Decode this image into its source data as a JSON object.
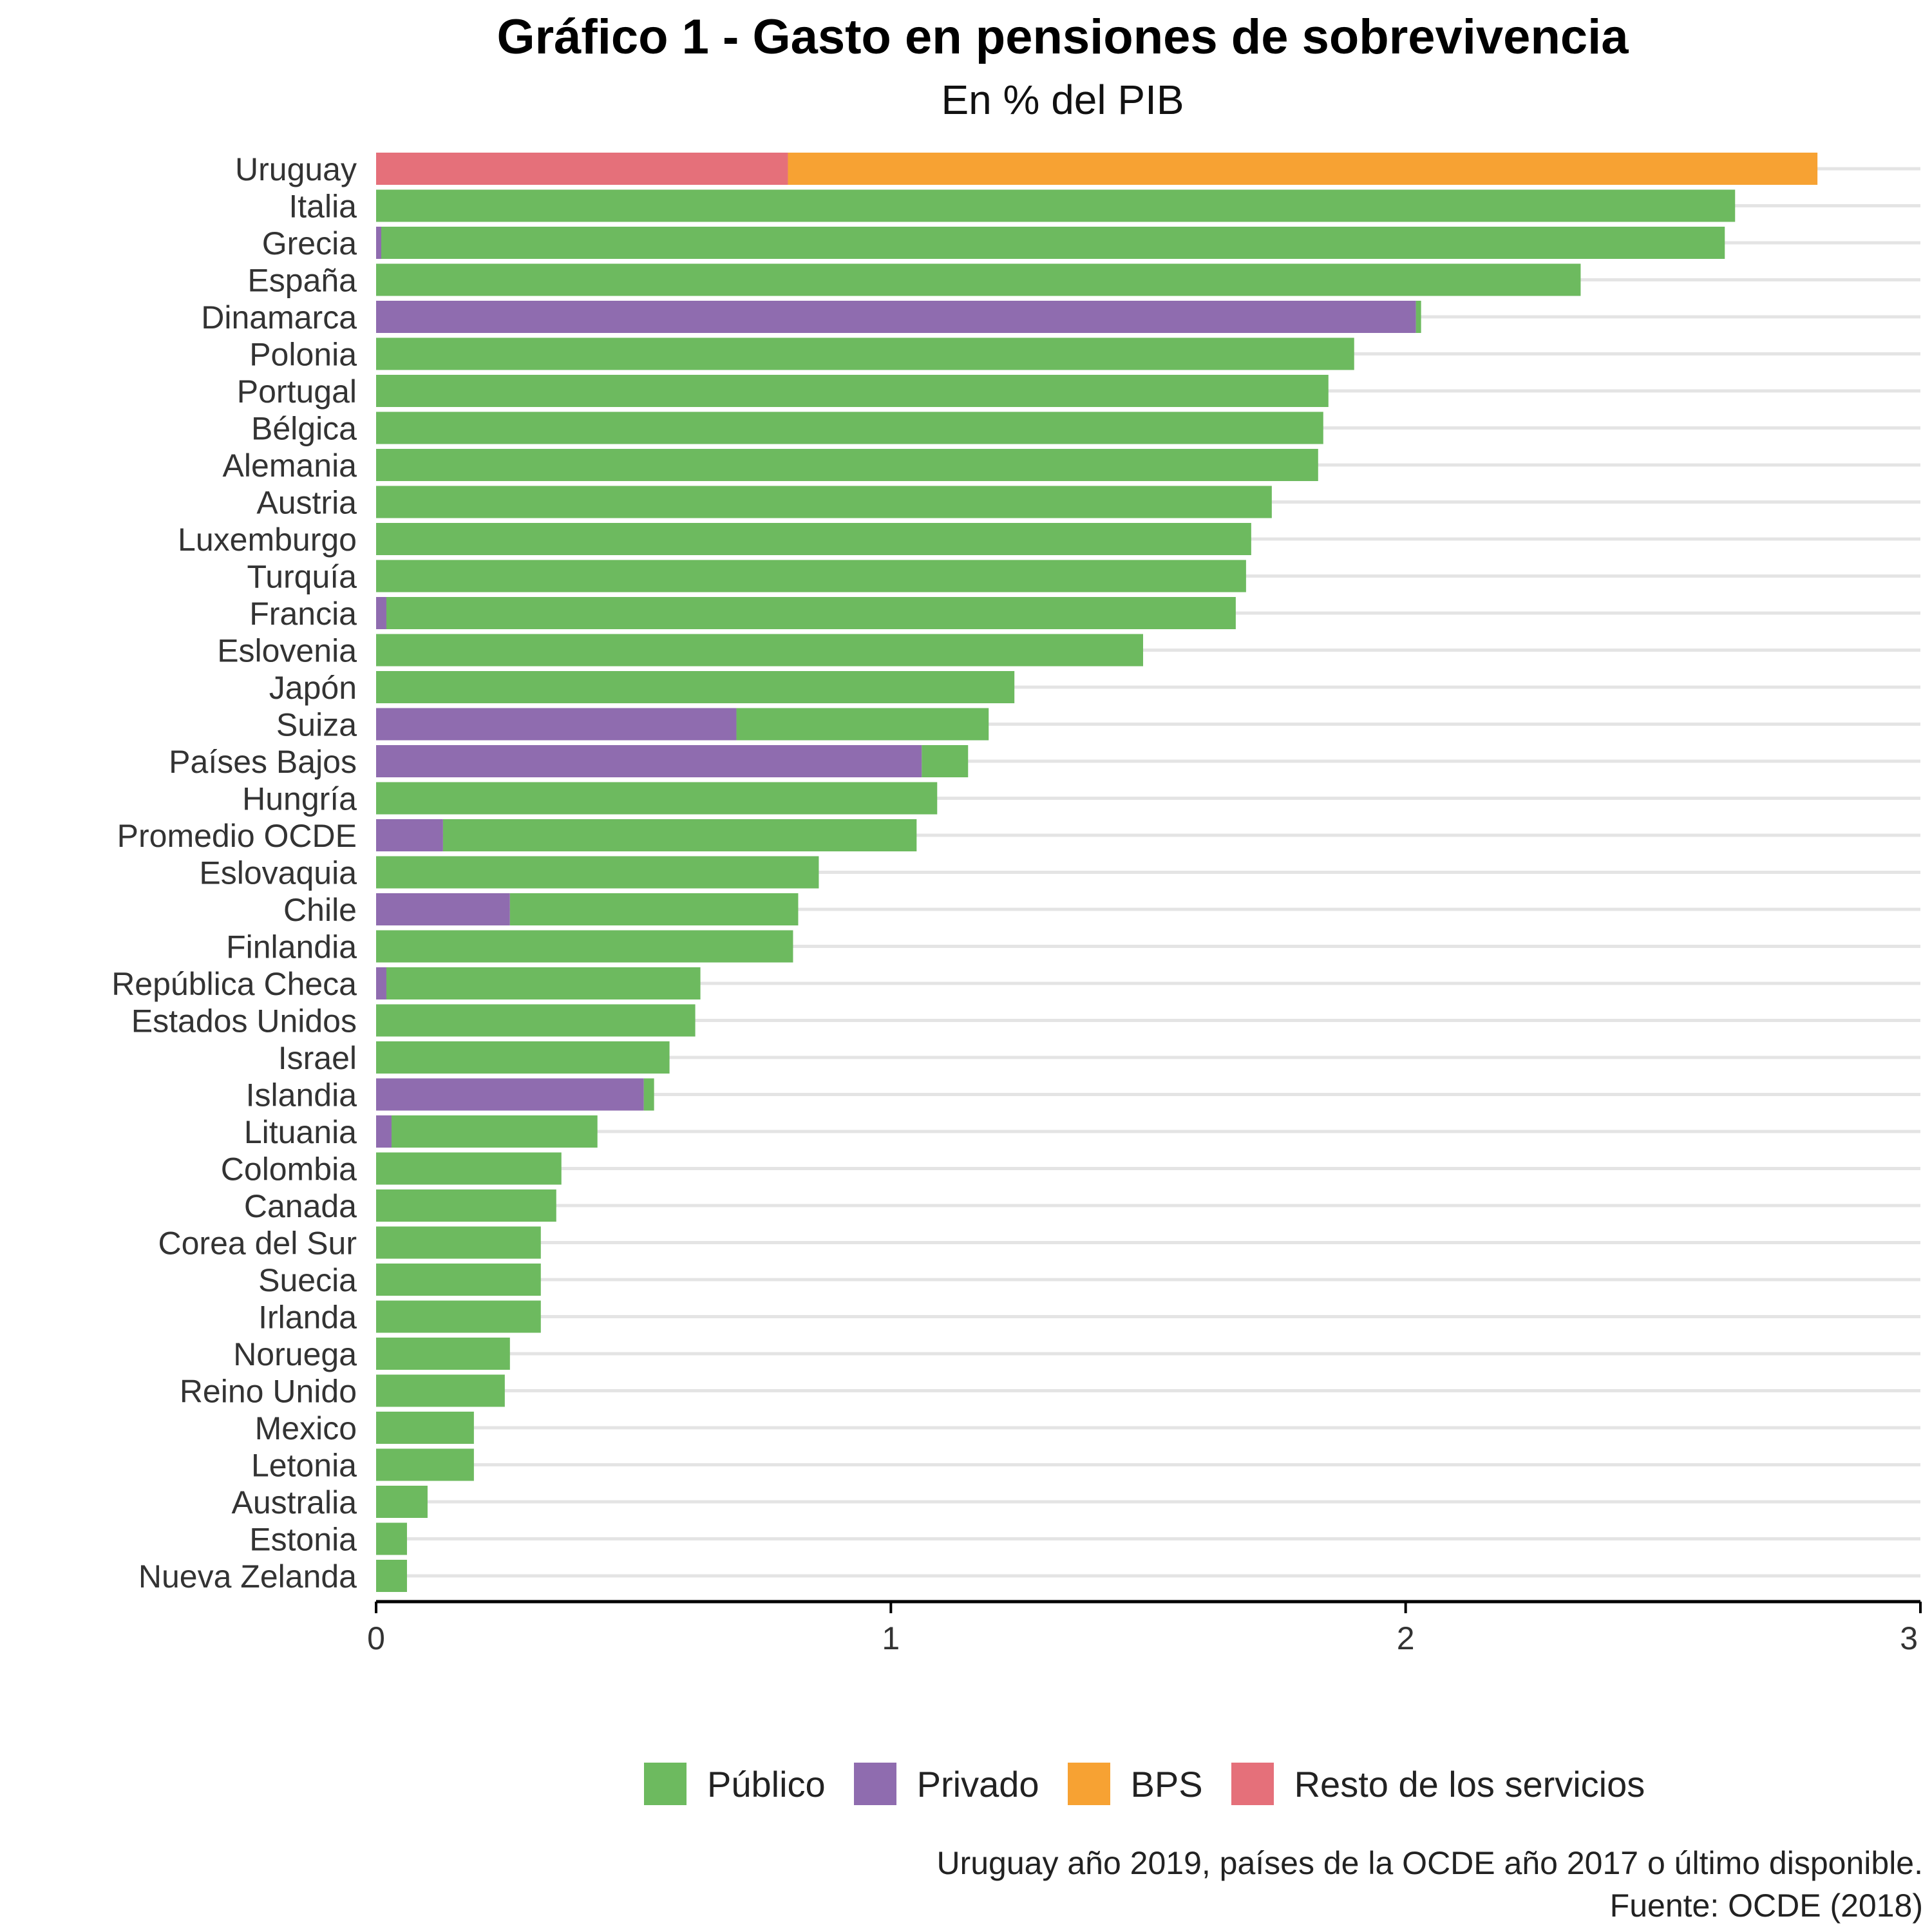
{
  "chart_data": {
    "type": "bar",
    "orientation": "horizontal",
    "stacked": true,
    "title": "Gráfico 1 - Gasto en pensiones de sobrevivencia",
    "subtitle": "En % del PIB",
    "xlim": [
      0,
      3
    ],
    "x_ticks": [
      "0",
      "1",
      "2",
      "3"
    ],
    "grid": "horizontal",
    "legend_position": "bottom",
    "categories": [
      "Uruguay",
      "Italia",
      "Grecia",
      "España",
      "Dinamarca",
      "Polonia",
      "Portugal",
      "Bélgica",
      "Alemania",
      "Austria",
      "Luxemburgo",
      "Turquía",
      "Francia",
      "Eslovenia",
      "Japón",
      "Suiza",
      "Países Bajos",
      "Hungría",
      "Promedio OCDE",
      "Eslovaquia",
      "Chile",
      "Finlandia",
      "República Checa",
      "Estados Unidos",
      "Israel",
      "Islandia",
      "Lituania",
      "Colombia",
      "Canada",
      "Corea del Sur",
      "Suecia",
      "Irlanda",
      "Noruega",
      "Reino Unido",
      "Mexico",
      "Letonia",
      "Australia",
      "Estonia",
      "Nueva Zelanda"
    ],
    "series": [
      {
        "name": "Resto de los servicios",
        "color": "#E5707A",
        "values": [
          0.8,
          0,
          0,
          0,
          0,
          0,
          0,
          0,
          0,
          0,
          0,
          0,
          0,
          0,
          0,
          0,
          0,
          0,
          0,
          0,
          0,
          0,
          0,
          0,
          0,
          0,
          0,
          0,
          0,
          0,
          0,
          0,
          0,
          0,
          0,
          0,
          0,
          0,
          0
        ]
      },
      {
        "name": "BPS",
        "color": "#F7A233",
        "values": [
          2.0,
          0,
          0,
          0,
          0,
          0,
          0,
          0,
          0,
          0,
          0,
          0,
          0,
          0,
          0,
          0,
          0,
          0,
          0,
          0,
          0,
          0,
          0,
          0,
          0,
          0,
          0,
          0,
          0,
          0,
          0,
          0,
          0,
          0,
          0,
          0,
          0,
          0,
          0
        ]
      },
      {
        "name": "Privado",
        "color": "#8F6CAF",
        "values": [
          0,
          0,
          0.01,
          0,
          2.02,
          0,
          0,
          0,
          0,
          0,
          0,
          0,
          0.02,
          0,
          0,
          0.7,
          1.06,
          0,
          0.13,
          0,
          0.26,
          0,
          0.02,
          0,
          0,
          0.52,
          0.03,
          0,
          0,
          0,
          0,
          0,
          0,
          0,
          0,
          0,
          0,
          0,
          0
        ]
      },
      {
        "name": "Público",
        "color": "#6DBA5F",
        "values": [
          0,
          2.64,
          2.61,
          2.34,
          0.01,
          1.9,
          1.85,
          1.84,
          1.83,
          1.74,
          1.7,
          1.69,
          1.65,
          1.49,
          1.24,
          0.49,
          0.09,
          1.09,
          0.92,
          0.86,
          0.56,
          0.81,
          0.61,
          0.62,
          0.57,
          0.02,
          0.4,
          0.36,
          0.35,
          0.32,
          0.32,
          0.32,
          0.26,
          0.25,
          0.19,
          0.19,
          0.1,
          0.06,
          0.06
        ]
      }
    ],
    "legend_order": [
      "Público",
      "Privado",
      "BPS",
      "Resto de los servicios"
    ],
    "caption_lines": [
      "Uruguay año 2019, países de la OCDE año 2017 o último disponible.",
      "Fuente: OCDE (2018)"
    ]
  }
}
